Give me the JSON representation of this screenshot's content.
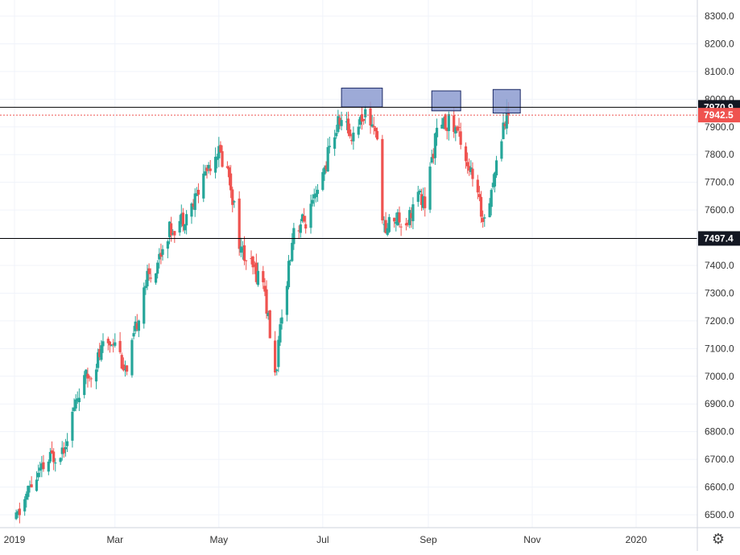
{
  "chart_data": {
    "type": "candlestick",
    "title": "",
    "xlabel": "",
    "ylabel": "",
    "y_axis_position": "right",
    "ylim": [
      6450,
      8350
    ],
    "y_ticks": [
      "6500.0",
      "6600.0",
      "6700.0",
      "6800.0",
      "6900.0",
      "7000.0",
      "7100.0",
      "7200.0",
      "7300.0",
      "7400.0",
      "7500.0",
      "7600.0",
      "7700.0",
      "7800.0",
      "7900.0",
      "8000.0",
      "8100.0",
      "8200.0",
      "8300.0"
    ],
    "x_ticks": [
      "2019",
      "Mar",
      "May",
      "Jul",
      "Sep",
      "Nov",
      "2020"
    ],
    "grid": true,
    "colors": {
      "up": "#26a69a",
      "down": "#ef5350",
      "grid": "#f0f3fa",
      "line": "#000000",
      "dotted": "#ef5350",
      "zone_fill": "#8c9bd0",
      "zone_stroke": "#1c2a66"
    },
    "price_labels": [
      {
        "text": "7970.9",
        "value": 7970.9,
        "style": "dark"
      },
      {
        "text": "7942.5",
        "value": 7942.5,
        "style": "red"
      },
      {
        "text": "7497.4",
        "value": 7497.4,
        "style": "dark"
      }
    ],
    "horizontal_lines": [
      {
        "value": 7970.9,
        "style": "solid"
      },
      {
        "value": 7942.5,
        "style": "dotted"
      },
      {
        "value": 7497.4,
        "style": "solid"
      }
    ],
    "zones": [
      {
        "start": "2019-07-12",
        "end": "2019-08-05",
        "top": 8040,
        "bottom": 7972
      },
      {
        "start": "2019-09-03",
        "end": "2019-09-20",
        "top": 8030,
        "bottom": 7958
      },
      {
        "start": "2019-10-09",
        "end": "2019-10-25",
        "top": 8035,
        "bottom": 7950
      }
    ],
    "waypoints": [
      [
        "2019-01-02",
        6480
      ],
      [
        "2019-01-10",
        6600
      ],
      [
        "2019-01-22",
        6700
      ],
      [
        "2019-01-30",
        6750
      ],
      [
        "2019-02-08",
        6950
      ],
      [
        "2019-02-15",
        7020
      ],
      [
        "2019-02-22",
        7100
      ],
      [
        "2019-03-01",
        7140
      ],
      [
        "2019-03-08",
        7000
      ],
      [
        "2019-03-18",
        7330
      ],
      [
        "2019-03-25",
        7400
      ],
      [
        "2019-04-01",
        7520
      ],
      [
        "2019-04-08",
        7560
      ],
      [
        "2019-04-16",
        7620
      ],
      [
        "2019-04-23",
        7740
      ],
      [
        "2019-04-30",
        7820
      ],
      [
        "2019-05-07",
        7730
      ],
      [
        "2019-05-14",
        7450
      ],
      [
        "2019-05-20",
        7390
      ],
      [
        "2019-05-27",
        7350
      ],
      [
        "2019-06-03",
        7000
      ],
      [
        "2019-06-10",
        7360
      ],
      [
        "2019-06-14",
        7540
      ],
      [
        "2019-06-21",
        7560
      ],
      [
        "2019-06-28",
        7650
      ],
      [
        "2019-07-04",
        7800
      ],
      [
        "2019-07-11",
        7930
      ],
      [
        "2019-07-18",
        7870
      ],
      [
        "2019-07-25",
        7950
      ],
      [
        "2019-08-01",
        7900
      ],
      [
        "2019-08-06",
        7520
      ],
      [
        "2019-08-12",
        7580
      ],
      [
        "2019-08-19",
        7560
      ],
      [
        "2019-08-26",
        7650
      ],
      [
        "2019-08-30",
        7620
      ],
      [
        "2019-09-05",
        7860
      ],
      [
        "2019-09-12",
        7920
      ],
      [
        "2019-09-19",
        7880
      ],
      [
        "2019-09-26",
        7730
      ],
      [
        "2019-10-03",
        7570
      ],
      [
        "2019-10-08",
        7680
      ],
      [
        "2019-10-11",
        7760
      ],
      [
        "2019-10-15",
        7920
      ],
      [
        "2019-10-18",
        7950
      ]
    ]
  }
}
